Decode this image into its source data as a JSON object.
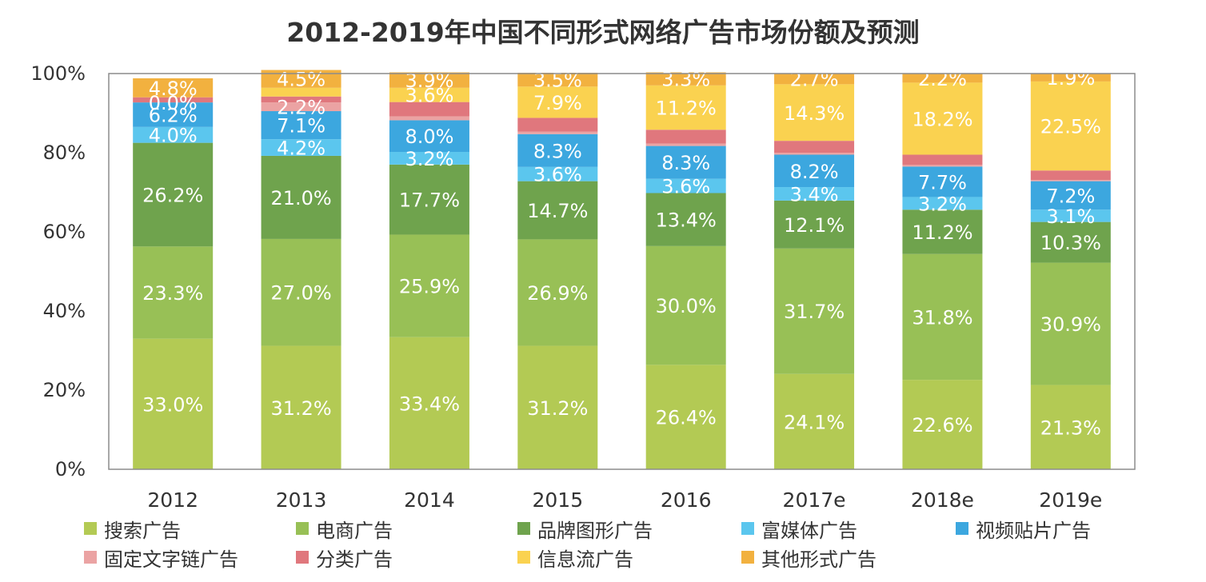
{
  "chart_data": {
    "type": "bar",
    "stacked": true,
    "percent": true,
    "title": "2012-2019年中国不同形式网络广告市场份额及预测",
    "xlabel": "",
    "ylabel": "",
    "ylim": [
      0,
      100
    ],
    "yticks": [
      "0%",
      "20%",
      "40%",
      "60%",
      "80%",
      "100%"
    ],
    "categories": [
      "2012",
      "2013",
      "2014",
      "2015",
      "2016",
      "2017e",
      "2018e",
      "2019e"
    ],
    "series": [
      {
        "name": "搜索广告",
        "color": "#b3ca54",
        "values": [
          33.0,
          31.2,
          33.4,
          31.2,
          26.4,
          24.1,
          22.6,
          21.3
        ],
        "labels": [
          "33.0%",
          "31.2%",
          "33.4%",
          "31.2%",
          "26.4%",
          "24.1%",
          "22.6%",
          "21.3%"
        ]
      },
      {
        "name": "电商广告",
        "color": "#98c056",
        "values": [
          23.3,
          27.0,
          25.9,
          26.9,
          30.0,
          31.7,
          31.8,
          30.9
        ],
        "labels": [
          "23.3%",
          "27.0%",
          "25.9%",
          "26.9%",
          "30.0%",
          "31.7%",
          "31.8%",
          "30.9%"
        ]
      },
      {
        "name": "品牌图形广告",
        "color": "#6fa34d",
        "values": [
          26.2,
          21.0,
          17.7,
          14.7,
          13.4,
          12.1,
          11.2,
          10.3
        ],
        "labels": [
          "26.2%",
          "21.0%",
          "17.7%",
          "14.7%",
          "13.4%",
          "12.1%",
          "11.2%",
          "10.3%"
        ]
      },
      {
        "name": "富媒体广告",
        "color": "#5bc6ee",
        "values": [
          4.0,
          4.2,
          3.2,
          3.6,
          3.6,
          3.4,
          3.2,
          3.1
        ],
        "labels": [
          "4.0%",
          "4.2%",
          "3.2%",
          "3.6%",
          "3.6%",
          "3.4%",
          "3.2%",
          "3.1%"
        ]
      },
      {
        "name": "视频贴片广告",
        "color": "#3ca7df",
        "values": [
          6.2,
          7.1,
          8.0,
          8.3,
          8.3,
          8.2,
          7.7,
          7.2
        ],
        "labels": [
          "6.2%",
          "7.1%",
          "8.0%",
          "8.3%",
          "8.3%",
          "8.2%",
          "7.7%",
          "7.2%"
        ]
      },
      {
        "name": "固定文字链广告",
        "color": "#eba3a3",
        "values": [
          0.0,
          2.2,
          1.0,
          0.6,
          0.6,
          0.5,
          0.4,
          0.3
        ],
        "labels": [
          "0.0%",
          "2.2%",
          "",
          "",
          "",
          "",
          "",
          ""
        ]
      },
      {
        "name": "分类广告",
        "color": "#e0777d",
        "values": [
          1.3,
          1.5,
          3.6,
          3.5,
          3.5,
          3.0,
          2.6,
          2.4
        ],
        "labels": [
          "",
          "",
          "",
          "",
          "",
          "",
          "",
          ""
        ]
      },
      {
        "name": "信息流广告",
        "color": "#fad250",
        "values": [
          0.0,
          2.2,
          3.6,
          7.9,
          11.2,
          14.3,
          18.2,
          22.5
        ],
        "labels": [
          "",
          "",
          "3.6%",
          "7.9%",
          "11.2%",
          "14.3%",
          "18.2%",
          "22.5%"
        ]
      },
      {
        "name": "其他形式广告",
        "color": "#f2b13f",
        "values": [
          4.8,
          4.5,
          3.9,
          3.5,
          3.3,
          2.7,
          2.2,
          1.9
        ],
        "labels": [
          "4.8%",
          "4.5%",
          "3.9%",
          "3.5%",
          "3.3%",
          "2.7%",
          "2.2%",
          "1.9%"
        ]
      }
    ],
    "grid": false,
    "legend_position": "bottom"
  }
}
